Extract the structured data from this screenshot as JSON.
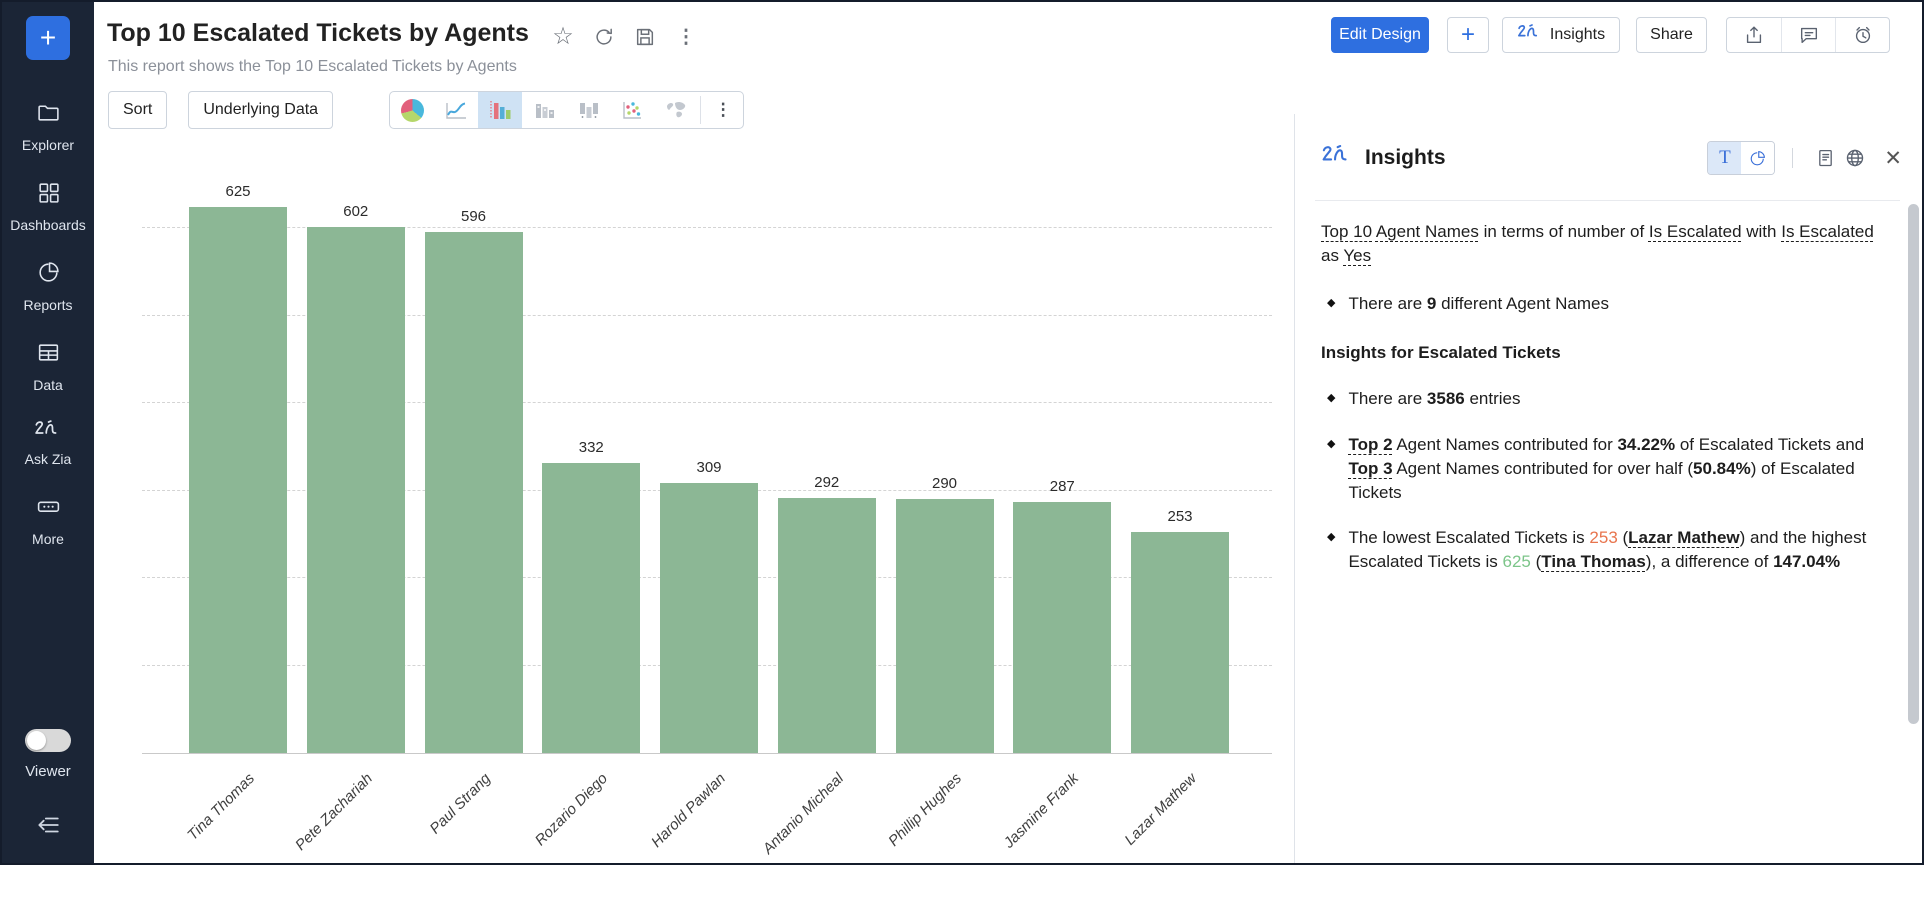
{
  "icons": {
    "star": "☆",
    "kebab": "⋮",
    "close": "✕",
    "gear": "⚙",
    "plus": "+"
  },
  "sidebar": {
    "plus_label": "+",
    "items": [
      {
        "label": "Explorer"
      },
      {
        "label": "Dashboards"
      },
      {
        "label": "Reports"
      },
      {
        "label": "Data"
      },
      {
        "label": "Ask Zia"
      },
      {
        "label": "More"
      }
    ],
    "viewer_label": "Viewer"
  },
  "header": {
    "title": "Top 10 Escalated Tickets by Agents",
    "subtitle": "This report shows the Top 10 Escalated Tickets by Agents"
  },
  "actions": {
    "edit_design": "Edit Design",
    "add": "+",
    "insights": "Insights",
    "share": "Share"
  },
  "toolbar": {
    "sort": "Sort",
    "underlying_data": "Underlying Data"
  },
  "chart_data": {
    "type": "bar",
    "title": "Top 10 Escalated Tickets by Agents",
    "categories": [
      "Tina Thomas",
      "Pete Zachariah",
      "Paul Strang",
      "Rozario Diego",
      "Harold Pawlan",
      "Antanio Micheal",
      "Phillip Hughes",
      "Jasmine Frank",
      "Lazar Mathew"
    ],
    "values": [
      625,
      602,
      596,
      332,
      309,
      292,
      290,
      287,
      253
    ],
    "xlabel": "",
    "ylabel": "",
    "ylim": [
      0,
      700
    ],
    "gridline_step": 100,
    "grid": true,
    "legend": false,
    "bar_color": "#8cb795"
  },
  "insights_panel": {
    "title": "Insights",
    "toggle_text_label": "T",
    "intro": [
      {
        "t": "Top 10",
        "u": 1
      },
      {
        "t": " "
      },
      {
        "t": "Agent Names",
        "u": 1
      },
      {
        "t": " in terms of number of "
      },
      {
        "t": "Is Escalated",
        "u": 1
      },
      {
        "t": " with "
      },
      {
        "t": "Is Escalated",
        "u": 1
      },
      {
        "t": " as "
      },
      {
        "t": "Yes",
        "u": 1
      }
    ],
    "section1": {
      "bullets": [
        [
          {
            "t": "There are "
          },
          {
            "t": "9",
            "b": 1
          },
          {
            "t": " different Agent Names"
          }
        ]
      ]
    },
    "section2": {
      "title": "Insights for Escalated Tickets",
      "bullets": [
        [
          {
            "t": "There are "
          },
          {
            "t": "3586",
            "b": 1
          },
          {
            "t": " entries"
          }
        ],
        [
          {
            "t": "Top 2",
            "b": 1,
            "u": 1
          },
          {
            "t": " Agent Names contributed for "
          },
          {
            "t": "34.22%",
            "b": 1
          },
          {
            "t": " of Escalated Tickets and "
          },
          {
            "t": "Top 3",
            "b": 1,
            "u": 1
          },
          {
            "t": " Agent Names contributed for over half ("
          },
          {
            "t": "50.84%",
            "b": 1
          },
          {
            "t": ") of Escalated Tickets"
          }
        ],
        [
          {
            "t": "The lowest Escalated Tickets is "
          },
          {
            "t": "253",
            "c": "#e8744d"
          },
          {
            "t": " ("
          },
          {
            "t": "Lazar Mathew",
            "b": 1,
            "u": 1
          },
          {
            "t": ") and the highest Escalated Tickets is "
          },
          {
            "t": "625",
            "c": "#7cc589"
          },
          {
            "t": " ("
          },
          {
            "t": "Tina Thomas",
            "b": 1,
            "u": 1
          },
          {
            "t": "), a difference of "
          },
          {
            "t": "147.04%",
            "b": 1
          }
        ]
      ]
    }
  }
}
